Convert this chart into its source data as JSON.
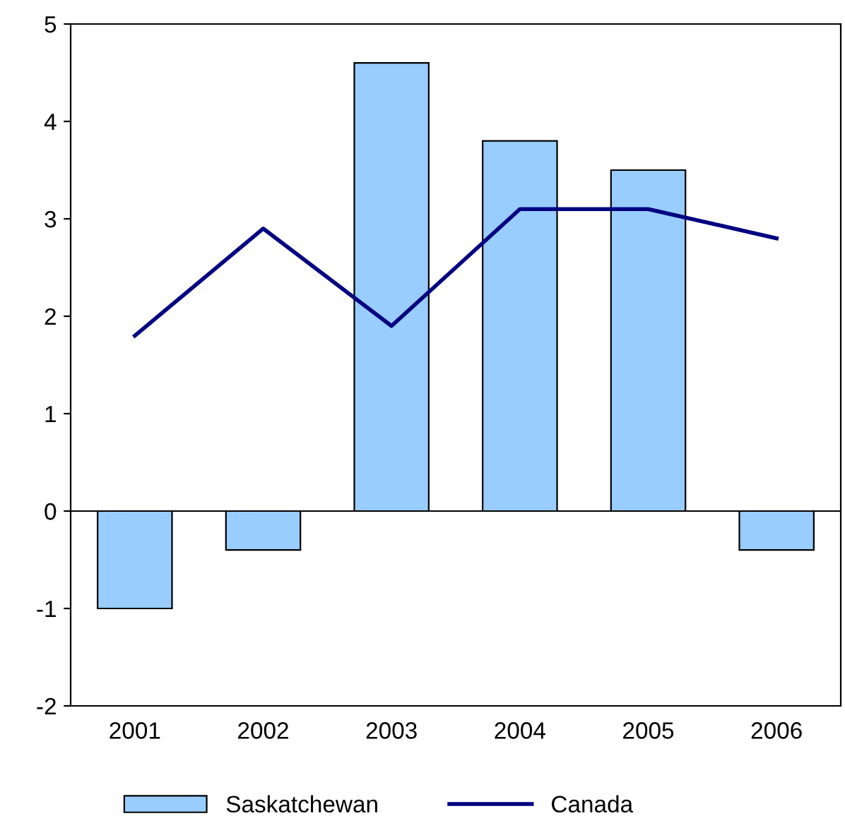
{
  "chart_data": {
    "type": "bar",
    "categories": [
      "2001",
      "2002",
      "2003",
      "2004",
      "2005",
      "2006"
    ],
    "series": [
      {
        "name": "Saskatchewan",
        "color": "#99ccff",
        "values": [
          -1.0,
          -0.4,
          4.6,
          3.8,
          3.5,
          -0.4
        ]
      },
      {
        "name": "Canada",
        "type": "line",
        "color": "#000080",
        "values": [
          1.8,
          2.9,
          1.9,
          3.1,
          3.1,
          2.8
        ]
      }
    ],
    "ref_lines": [
      {
        "axis": "y",
        "value": 0,
        "color": "#000000"
      }
    ],
    "ylim": [
      -2,
      5
    ],
    "yticks": [
      -2,
      -1,
      0,
      1,
      2,
      3,
      4,
      5
    ],
    "grid": false,
    "legend": "bottom",
    "marker": "none",
    "line_style": "solid"
  }
}
